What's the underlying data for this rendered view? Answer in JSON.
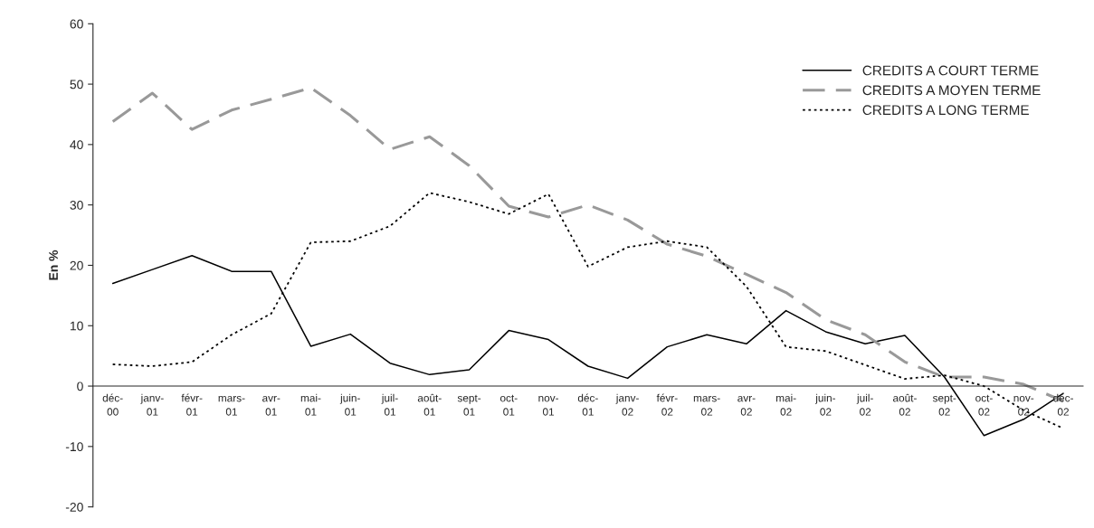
{
  "chart_data": {
    "type": "line",
    "ylabel": "En %",
    "categories": [
      "déc-00",
      "janv-01",
      "févr-01",
      "mars-01",
      "avr-01",
      "mai-01",
      "juin-01",
      "juil-01",
      "août-01",
      "sept-01",
      "oct-01",
      "nov-01",
      "déc-01",
      "janv-02",
      "févr-02",
      "mars-02",
      "avr-02",
      "mai-02",
      "juin-02",
      "juil-02",
      "août-02",
      "sept-02",
      "oct-02",
      "nov-02",
      "déc-02"
    ],
    "series": [
      {
        "name": "CREDITS A COURT TERME",
        "color": "#000000",
        "line_style": "solid",
        "values": [
          17,
          19.3,
          21.6,
          19,
          19,
          6.6,
          8.6,
          3.8,
          1.9,
          2.7,
          9.2,
          7.7,
          3.3,
          1.3,
          6.5,
          8.5,
          7,
          12.5,
          9,
          7,
          8.4,
          1.5,
          -8.2,
          -5.5,
          -1.2
        ]
      },
      {
        "name": "CREDITS A MOYEN TERME",
        "color": "#999999",
        "line_style": "dashed",
        "values": [
          43.8,
          48.5,
          42.5,
          45.7,
          47.5,
          49.4,
          44.8,
          39.2,
          41.3,
          36.5,
          29.8,
          28,
          30,
          27.5,
          23.5,
          21.5,
          18.5,
          15.5,
          11,
          8.5,
          4,
          1.5,
          1.5,
          0.3,
          -2.5
        ]
      },
      {
        "name": "CREDITS A LONG TERME",
        "color": "#000000",
        "line_style": "dotted",
        "values": [
          3.6,
          3.3,
          4,
          8.5,
          12,
          23.8,
          24,
          26.5,
          32,
          30.5,
          28.5,
          31.8,
          19.8,
          23,
          24,
          23,
          16.5,
          6.5,
          5.8,
          3.5,
          1.2,
          1.8,
          0,
          -4,
          -7
        ]
      }
    ],
    "ylim": [
      -20,
      60
    ],
    "yticks": [
      -20,
      -10,
      0,
      10,
      20,
      30,
      40,
      50,
      60
    ],
    "grid": false,
    "legend": "top right"
  }
}
